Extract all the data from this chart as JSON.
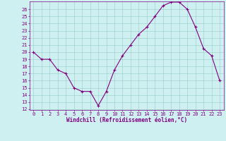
{
  "x": [
    0,
    1,
    2,
    3,
    4,
    5,
    6,
    7,
    8,
    9,
    10,
    11,
    12,
    13,
    14,
    15,
    16,
    17,
    18,
    19,
    20,
    21,
    22,
    23
  ],
  "y": [
    20,
    19,
    19,
    17.5,
    17,
    15,
    14.5,
    14.5,
    12.5,
    14.5,
    17.5,
    19.5,
    21,
    22.5,
    23.5,
    25,
    26.5,
    27,
    27,
    26,
    23.5,
    20.5,
    19.5,
    16
  ],
  "line_color": "#800080",
  "marker": "+",
  "marker_size": 3,
  "marker_lw": 0.8,
  "line_width": 0.8,
  "bg_color": "#cff0f0",
  "grid_color": "#99cccc",
  "xlabel": "Windchill (Refroidissement éolien,°C)",
  "xlabel_fontsize": 5.5,
  "tick_color": "#800080",
  "tick_fontsize": 5,
  "ylim": [
    12,
    27
  ],
  "xlim": [
    -0.5,
    23.5
  ],
  "yticks": [
    12,
    13,
    14,
    15,
    16,
    17,
    18,
    19,
    20,
    21,
    22,
    23,
    24,
    25,
    26
  ],
  "xticks": [
    0,
    1,
    2,
    3,
    4,
    5,
    6,
    7,
    8,
    9,
    10,
    11,
    12,
    13,
    14,
    15,
    16,
    17,
    18,
    19,
    20,
    21,
    22,
    23
  ]
}
